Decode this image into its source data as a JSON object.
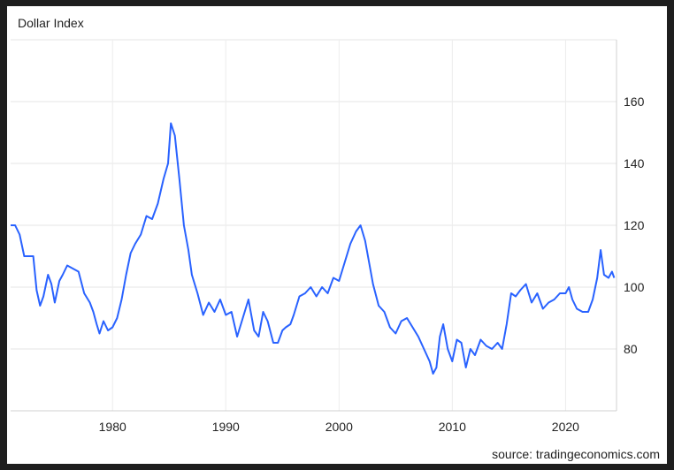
{
  "chart_data": {
    "type": "line",
    "title": "Dollar Index",
    "source": "source: tradingeconomics.com",
    "xlabel": "",
    "ylabel": "",
    "grid": true,
    "xlim": [
      1971.0,
      2024.5
    ],
    "ylim": [
      60,
      180
    ],
    "x_ticks": [
      "1980",
      "1990",
      "2000",
      "2010",
      "2020"
    ],
    "y_ticks": [
      "80",
      "100",
      "120",
      "140",
      "160"
    ],
    "line_color": "#2962ff",
    "series": [
      {
        "x": [
          1971.0,
          1971.4,
          1971.8,
          1972.2,
          1972.6,
          1973.0,
          1973.3,
          1973.6,
          1973.9,
          1974.3,
          1974.6,
          1974.9,
          1975.3,
          1975.6,
          1976.0,
          1976.5,
          1977.0,
          1977.5,
          1978.0,
          1978.3,
          1978.6,
          1978.85,
          1979.2,
          1979.6,
          1980.0,
          1980.4,
          1980.8,
          1981.2,
          1981.6,
          1982.0,
          1982.5,
          1983.0,
          1983.5,
          1984.0,
          1984.5,
          1984.9,
          1985.15,
          1985.5,
          1985.9,
          1986.3,
          1986.7,
          1987.0,
          1987.5,
          1988.0,
          1988.5,
          1989.0,
          1989.5,
          1990.0,
          1990.5,
          1991.0,
          1991.5,
          1992.0,
          1992.5,
          1992.9,
          1993.3,
          1993.7,
          1994.2,
          1994.6,
          1995.0,
          1995.3,
          1995.7,
          1996.0,
          1996.5,
          1997.0,
          1997.5,
          1998.0,
          1998.5,
          1999.0,
          1999.5,
          2000.0,
          2000.5,
          2001.0,
          2001.5,
          2001.9,
          2002.3,
          2002.7,
          2003.0,
          2003.5,
          2004.0,
          2004.5,
          2005.0,
          2005.5,
          2006.0,
          2006.5,
          2007.0,
          2007.5,
          2008.0,
          2008.3,
          2008.6,
          2008.9,
          2009.2,
          2009.6,
          2010.0,
          2010.4,
          2010.8,
          2011.2,
          2011.6,
          2012.0,
          2012.5,
          2013.0,
          2013.5,
          2014.0,
          2014.4,
          2014.8,
          2015.2,
          2015.6,
          2016.0,
          2016.5,
          2017.0,
          2017.5,
          2018.0,
          2018.5,
          2019.0,
          2019.5,
          2020.0,
          2020.3,
          2020.6,
          2021.0,
          2021.5,
          2022.0,
          2022.4,
          2022.8,
          2023.1,
          2023.4,
          2023.8,
          2024.1,
          2024.3
        ],
        "values": [
          120,
          120,
          117,
          110,
          110,
          110,
          99,
          94,
          97,
          104,
          101,
          95,
          102,
          104,
          107,
          106,
          105,
          98,
          95,
          92,
          88,
          85,
          89,
          86,
          87,
          90,
          96,
          104,
          111,
          114,
          117,
          123,
          122,
          127,
          135,
          140,
          153,
          149,
          135,
          120,
          112,
          104,
          98,
          91,
          95,
          92,
          96,
          91,
          92,
          84,
          90,
          96,
          86,
          84,
          92,
          89,
          82,
          82,
          86,
          87,
          88,
          91,
          97,
          98,
          100,
          97,
          100,
          98,
          103,
          102,
          108,
          114,
          118,
          120,
          115,
          107,
          101,
          94,
          92,
          87,
          85,
          89,
          90,
          87,
          84,
          80,
          76,
          72,
          74,
          84,
          88,
          80,
          76,
          83,
          82,
          74,
          80,
          78,
          83,
          81,
          80,
          82,
          80,
          88,
          98,
          97,
          99,
          101,
          95,
          98,
          93,
          95,
          96,
          98,
          98,
          100,
          96,
          93,
          92,
          92,
          96,
          103,
          112,
          104,
          103,
          105,
          103
        ]
      }
    ]
  }
}
